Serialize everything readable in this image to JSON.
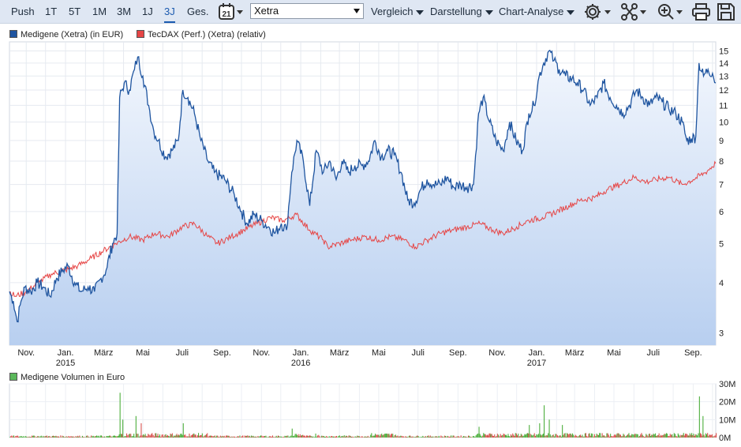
{
  "toolbar": {
    "periods": [
      "Push",
      "1T",
      "5T",
      "1M",
      "3M",
      "1J",
      "3J",
      "Ges."
    ],
    "active_period": "3J",
    "calendar_day": "21",
    "exchange": "Xetra",
    "menus": [
      "Vergleich",
      "Darstellung",
      "Chart-Analyse"
    ],
    "icons": [
      "settings-icon",
      "share-network-icon",
      "zoom-in-icon",
      "print-icon",
      "save-icon"
    ]
  },
  "legend": {
    "series1": "Medigene (Xetra) (in EUR)",
    "series2": "TecDAX (Perf.) (Xetra) (relativ)",
    "volume": "Medigene Volumen in Euro"
  },
  "colors": {
    "series1": "#1f55a0",
    "series2": "#e64545",
    "area_top": "#f3f7fd",
    "area_bottom": "#b8cff0",
    "volume_green": "#4caf3c",
    "volume_red": "#d9534f"
  },
  "chart_data": [
    {
      "type": "area",
      "y_scale": "log",
      "ylim": [
        2.8,
        15.8
      ],
      "y_ticks": [
        3,
        4,
        5,
        6,
        7,
        8,
        9,
        10,
        11,
        12,
        13,
        14,
        15
      ],
      "x_range": [
        "2014-10-06",
        "2017-10-06"
      ],
      "x_tick_labels": [
        {
          "label": "Nov.",
          "date": "2014-11-01",
          "year": ""
        },
        {
          "label": "Jan.",
          "date": "2015-01-01",
          "year": "2015"
        },
        {
          "label": "März",
          "date": "2015-03-01",
          "year": ""
        },
        {
          "label": "Mai",
          "date": "2015-05-01",
          "year": ""
        },
        {
          "label": "Juli",
          "date": "2015-07-01",
          "year": ""
        },
        {
          "label": "Sep.",
          "date": "2015-09-01",
          "year": ""
        },
        {
          "label": "Nov.",
          "date": "2015-11-01",
          "year": ""
        },
        {
          "label": "Jan.",
          "date": "2016-01-01",
          "year": "2016"
        },
        {
          "label": "März",
          "date": "2016-03-01",
          "year": ""
        },
        {
          "label": "Mai",
          "date": "2016-05-01",
          "year": ""
        },
        {
          "label": "Juli",
          "date": "2016-07-01",
          "year": ""
        },
        {
          "label": "Sep.",
          "date": "2016-09-01",
          "year": ""
        },
        {
          "label": "Nov.",
          "date": "2016-11-01",
          "year": ""
        },
        {
          "label": "Jan.",
          "date": "2017-01-01",
          "year": "2017"
        },
        {
          "label": "März",
          "date": "2017-03-01",
          "year": ""
        },
        {
          "label": "Mai",
          "date": "2017-05-01",
          "year": ""
        },
        {
          "label": "Juli",
          "date": "2017-07-01",
          "year": ""
        },
        {
          "label": "Sep.",
          "date": "2017-09-01",
          "year": ""
        }
      ],
      "grid": true,
      "series": [
        {
          "name": "Medigene (Xetra) (in EUR)",
          "points": [
            [
              "2014-10-06",
              3.8
            ],
            [
              "2014-10-12",
              3.6
            ],
            [
              "2014-10-18",
              3.2
            ],
            [
              "2014-10-24",
              3.6
            ],
            [
              "2014-10-30",
              3.9
            ],
            [
              "2014-11-08",
              3.8
            ],
            [
              "2014-11-18",
              4.0
            ],
            [
              "2014-11-28",
              3.9
            ],
            [
              "2014-12-08",
              3.7
            ],
            [
              "2014-12-18",
              4.1
            ],
            [
              "2014-12-28",
              4.3
            ],
            [
              "2015-01-05",
              4.4
            ],
            [
              "2015-01-15",
              4.0
            ],
            [
              "2015-01-25",
              3.8
            ],
            [
              "2015-02-05",
              3.9
            ],
            [
              "2015-02-15",
              3.8
            ],
            [
              "2015-02-25",
              4.1
            ],
            [
              "2015-03-05",
              4.3
            ],
            [
              "2015-03-15",
              5.0
            ],
            [
              "2015-03-22",
              5.3
            ],
            [
              "2015-03-26",
              11.5
            ],
            [
              "2015-04-02",
              12.5
            ],
            [
              "2015-04-10",
              12.0
            ],
            [
              "2015-04-18",
              13.5
            ],
            [
              "2015-04-23",
              14.5
            ],
            [
              "2015-05-01",
              13.0
            ],
            [
              "2015-05-10",
              11.0
            ],
            [
              "2015-05-18",
              9.5
            ],
            [
              "2015-05-25",
              9.0
            ],
            [
              "2015-06-05",
              8.2
            ],
            [
              "2015-06-15",
              8.5
            ],
            [
              "2015-06-25",
              9.0
            ],
            [
              "2015-07-02",
              12.0
            ],
            [
              "2015-07-10",
              11.5
            ],
            [
              "2015-07-20",
              10.5
            ],
            [
              "2015-07-30",
              9.0
            ],
            [
              "2015-08-10",
              8.0
            ],
            [
              "2015-08-20",
              7.5
            ],
            [
              "2015-09-05",
              7.2
            ],
            [
              "2015-09-20",
              6.6
            ],
            [
              "2015-10-01",
              6.0
            ],
            [
              "2015-10-10",
              5.6
            ],
            [
              "2015-10-20",
              5.9
            ],
            [
              "2015-11-01",
              5.7
            ],
            [
              "2015-11-12",
              5.5
            ],
            [
              "2015-11-22",
              5.3
            ],
            [
              "2015-12-02",
              5.6
            ],
            [
              "2015-12-10",
              5.4
            ],
            [
              "2015-12-18",
              7.5
            ],
            [
              "2015-12-26",
              9.0
            ],
            [
              "2016-01-05",
              8.0
            ],
            [
              "2016-01-15",
              6.2
            ],
            [
              "2016-01-25",
              8.5
            ],
            [
              "2016-02-05",
              7.5
            ],
            [
              "2016-02-15",
              8.0
            ],
            [
              "2016-02-25",
              7.2
            ],
            [
              "2016-03-05",
              8.0
            ],
            [
              "2016-03-15",
              7.5
            ],
            [
              "2016-03-25",
              7.8
            ],
            [
              "2016-04-05",
              7.8
            ],
            [
              "2016-04-15",
              8.0
            ],
            [
              "2016-04-25",
              9.0
            ],
            [
              "2016-05-05",
              8.2
            ],
            [
              "2016-05-15",
              8.5
            ],
            [
              "2016-05-25",
              8.3
            ],
            [
              "2016-06-05",
              7.5
            ],
            [
              "2016-06-15",
              6.4
            ],
            [
              "2016-06-25",
              6.3
            ],
            [
              "2016-07-05",
              6.8
            ],
            [
              "2016-07-15",
              7.2
            ],
            [
              "2016-07-25",
              7.0
            ],
            [
              "2016-08-05",
              7.0
            ],
            [
              "2016-08-15",
              7.3
            ],
            [
              "2016-08-25",
              6.9
            ],
            [
              "2016-09-05",
              7.0
            ],
            [
              "2016-09-15",
              6.9
            ],
            [
              "2016-09-25",
              7.0
            ],
            [
              "2016-10-03",
              10.5
            ],
            [
              "2016-10-10",
              11.5
            ],
            [
              "2016-10-20",
              10.0
            ],
            [
              "2016-10-30",
              9.0
            ],
            [
              "2016-11-10",
              8.5
            ],
            [
              "2016-11-20",
              10.0
            ],
            [
              "2016-11-30",
              9.0
            ],
            [
              "2016-12-10",
              8.5
            ],
            [
              "2016-12-20",
              10.5
            ],
            [
              "2016-12-28",
              11.0
            ],
            [
              "2017-01-05",
              13.0
            ],
            [
              "2017-01-12",
              14.0
            ],
            [
              "2017-01-20",
              15.0
            ],
            [
              "2017-01-28",
              14.2
            ],
            [
              "2017-02-05",
              13.5
            ],
            [
              "2017-02-15",
              13.0
            ],
            [
              "2017-02-25",
              12.8
            ],
            [
              "2017-03-05",
              12.5
            ],
            [
              "2017-03-15",
              12.0
            ],
            [
              "2017-03-25",
              11.0
            ],
            [
              "2017-04-05",
              11.5
            ],
            [
              "2017-04-15",
              12.5
            ],
            [
              "2017-04-25",
              11.5
            ],
            [
              "2017-05-05",
              11.0
            ],
            [
              "2017-05-15",
              10.5
            ],
            [
              "2017-05-25",
              11.0
            ],
            [
              "2017-06-05",
              12.0
            ],
            [
              "2017-06-15",
              11.5
            ],
            [
              "2017-06-25",
              11.0
            ],
            [
              "2017-07-05",
              11.5
            ],
            [
              "2017-07-15",
              11.2
            ],
            [
              "2017-07-25",
              10.8
            ],
            [
              "2017-08-05",
              10.5
            ],
            [
              "2017-08-15",
              10.0
            ],
            [
              "2017-08-22",
              9.0
            ],
            [
              "2017-08-29",
              9.1
            ],
            [
              "2017-09-05",
              9.2
            ],
            [
              "2017-09-10",
              14.0
            ],
            [
              "2017-09-17",
              13.0
            ],
            [
              "2017-09-24",
              13.5
            ],
            [
              "2017-10-01",
              13.2
            ],
            [
              "2017-10-06",
              12.5
            ]
          ]
        },
        {
          "name": "TecDAX (Perf.) (Xetra) (relativ)",
          "points": [
            [
              "2014-10-06",
              3.8
            ],
            [
              "2014-10-15",
              3.7
            ],
            [
              "2014-11-01",
              3.8
            ],
            [
              "2014-11-20",
              4.0
            ],
            [
              "2014-12-10",
              4.2
            ],
            [
              "2015-01-01",
              4.3
            ],
            [
              "2015-01-20",
              4.4
            ],
            [
              "2015-02-10",
              4.6
            ],
            [
              "2015-03-01",
              4.8
            ],
            [
              "2015-03-20",
              5.0
            ],
            [
              "2015-04-10",
              5.2
            ],
            [
              "2015-05-01",
              5.1
            ],
            [
              "2015-05-20",
              5.3
            ],
            [
              "2015-06-10",
              5.2
            ],
            [
              "2015-07-01",
              5.5
            ],
            [
              "2015-07-20",
              5.6
            ],
            [
              "2015-08-10",
              5.2
            ],
            [
              "2015-08-25",
              5.0
            ],
            [
              "2015-09-15",
              5.2
            ],
            [
              "2015-10-05",
              5.4
            ],
            [
              "2015-10-25",
              5.6
            ],
            [
              "2015-11-15",
              5.8
            ],
            [
              "2015-12-05",
              5.7
            ],
            [
              "2015-12-25",
              5.9
            ],
            [
              "2016-01-15",
              5.4
            ],
            [
              "2016-02-05",
              5.1
            ],
            [
              "2016-02-12",
              4.9
            ],
            [
              "2016-03-01",
              5.0
            ],
            [
              "2016-03-20",
              5.1
            ],
            [
              "2016-04-10",
              5.2
            ],
            [
              "2016-05-01",
              5.1
            ],
            [
              "2016-05-20",
              5.2
            ],
            [
              "2016-06-10",
              5.1
            ],
            [
              "2016-06-27",
              4.9
            ],
            [
              "2016-07-15",
              5.1
            ],
            [
              "2016-08-05",
              5.3
            ],
            [
              "2016-08-25",
              5.4
            ],
            [
              "2016-09-15",
              5.5
            ],
            [
              "2016-10-05",
              5.6
            ],
            [
              "2016-10-25",
              5.4
            ],
            [
              "2016-11-10",
              5.3
            ],
            [
              "2016-12-01",
              5.5
            ],
            [
              "2016-12-20",
              5.7
            ],
            [
              "2017-01-10",
              5.8
            ],
            [
              "2017-02-01",
              6.0
            ],
            [
              "2017-02-20",
              6.2
            ],
            [
              "2017-03-10",
              6.4
            ],
            [
              "2017-04-01",
              6.5
            ],
            [
              "2017-04-20",
              6.8
            ],
            [
              "2017-05-10",
              7.0
            ],
            [
              "2017-06-01",
              7.3
            ],
            [
              "2017-06-20",
              7.1
            ],
            [
              "2017-07-05",
              7.2
            ],
            [
              "2017-07-25",
              7.3
            ],
            [
              "2017-08-15",
              7.0
            ],
            [
              "2017-09-01",
              7.2
            ],
            [
              "2017-09-20",
              7.5
            ],
            [
              "2017-10-06",
              7.9
            ]
          ]
        }
      ]
    },
    {
      "type": "bar",
      "series_name": "Medigene Volumen in Euro",
      "ylim": [
        0,
        30000000
      ],
      "y_tick_labels": [
        "0M",
        "10M",
        "20M",
        "30M"
      ],
      "y_tick_values": [
        0,
        10000000,
        20000000,
        30000000
      ],
      "spikes": [
        {
          "date": "2015-03-26",
          "value": 25000000
        },
        {
          "date": "2015-03-30",
          "value": 10000000
        },
        {
          "date": "2015-04-20",
          "value": 12000000
        },
        {
          "date": "2015-04-28",
          "value": 8000000
        },
        {
          "date": "2015-07-02",
          "value": 8000000
        },
        {
          "date": "2015-12-18",
          "value": 5000000
        },
        {
          "date": "2016-10-03",
          "value": 6000000
        },
        {
          "date": "2016-12-20",
          "value": 7000000
        },
        {
          "date": "2017-01-05",
          "value": 8000000
        },
        {
          "date": "2017-01-12",
          "value": 18000000
        },
        {
          "date": "2017-01-20",
          "value": 10000000
        },
        {
          "date": "2017-02-10",
          "value": 7000000
        },
        {
          "date": "2017-09-10",
          "value": 23000000
        },
        {
          "date": "2017-09-15",
          "value": 12000000
        }
      ]
    }
  ]
}
